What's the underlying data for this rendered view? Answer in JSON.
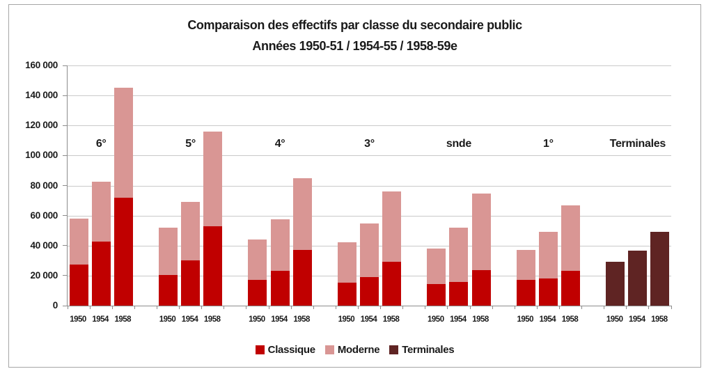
{
  "chart_data": {
    "type": "bar",
    "stacked": true,
    "title": "Comparaison des effectifs par classe du secondaire public",
    "subtitle": "Années 1950-51 / 1954-55 / 1958-59e",
    "xlabel": "",
    "ylabel": "",
    "ylim": [
      0,
      160000
    ],
    "ytick_interval": 20000,
    "ytick_labels": [
      "0",
      "20 000",
      "40 000",
      "60 000",
      "80 000",
      "100 000",
      "120 000",
      "140 000",
      "160 000"
    ],
    "grid": true,
    "legend_position": "bottom",
    "legend": [
      {
        "key": "classique",
        "name": "Classique",
        "color": "#C00000"
      },
      {
        "key": "moderne",
        "name": "Moderne",
        "color": "#D99694"
      },
      {
        "key": "terminales",
        "name": "Terminales",
        "color": "#5F2423"
      }
    ],
    "groups": [
      {
        "label": "6°",
        "bars": [
          {
            "year": "1950",
            "segments": {
              "classique": 27500,
              "moderne": 30500
            }
          },
          {
            "year": "1954",
            "segments": {
              "classique": 42500,
              "moderne": 40000
            }
          },
          {
            "year": "1958",
            "segments": {
              "classique": 72000,
              "moderne": 73000
            }
          }
        ]
      },
      {
        "label": "5°",
        "bars": [
          {
            "year": "1950",
            "segments": {
              "classique": 20500,
              "moderne": 31500
            }
          },
          {
            "year": "1954",
            "segments": {
              "classique": 30000,
              "moderne": 39000
            }
          },
          {
            "year": "1958",
            "segments": {
              "classique": 53000,
              "moderne": 63000
            }
          }
        ]
      },
      {
        "label": "4°",
        "bars": [
          {
            "year": "1950",
            "segments": {
              "classique": 17000,
              "moderne": 27000
            }
          },
          {
            "year": "1954",
            "segments": {
              "classique": 23000,
              "moderne": 34500
            }
          },
          {
            "year": "1958",
            "segments": {
              "classique": 37000,
              "moderne": 48000
            }
          }
        ]
      },
      {
        "label": "3°",
        "bars": [
          {
            "year": "1950",
            "segments": {
              "classique": 15500,
              "moderne": 26500
            }
          },
          {
            "year": "1954",
            "segments": {
              "classique": 19000,
              "moderne": 35500
            }
          },
          {
            "year": "1958",
            "segments": {
              "classique": 29000,
              "moderne": 47000
            }
          }
        ]
      },
      {
        "label": "snde",
        "bars": [
          {
            "year": "1950",
            "segments": {
              "classique": 14500,
              "moderne": 23500
            }
          },
          {
            "year": "1954",
            "segments": {
              "classique": 16000,
              "moderne": 36000
            }
          },
          {
            "year": "1958",
            "segments": {
              "classique": 23500,
              "moderne": 51000
            }
          }
        ]
      },
      {
        "label": "1°",
        "bars": [
          {
            "year": "1950",
            "segments": {
              "classique": 17000,
              "moderne": 20000
            }
          },
          {
            "year": "1954",
            "segments": {
              "classique": 18000,
              "moderne": 31000
            }
          },
          {
            "year": "1958",
            "segments": {
              "classique": 23000,
              "moderne": 44000
            }
          }
        ]
      },
      {
        "label": "Terminales",
        "bars": [
          {
            "year": "1950",
            "segments": {
              "terminales": 29000
            }
          },
          {
            "year": "1954",
            "segments": {
              "terminales": 36500
            }
          },
          {
            "year": "1958",
            "segments": {
              "terminales": 49000
            }
          }
        ]
      }
    ]
  },
  "style_colors": {
    "axis": "#8C8C8C",
    "gridline": "#C9C9C9",
    "frame_border": "#A6A6A6",
    "text": "#1A1A1A",
    "background": "#FFFFFF"
  }
}
